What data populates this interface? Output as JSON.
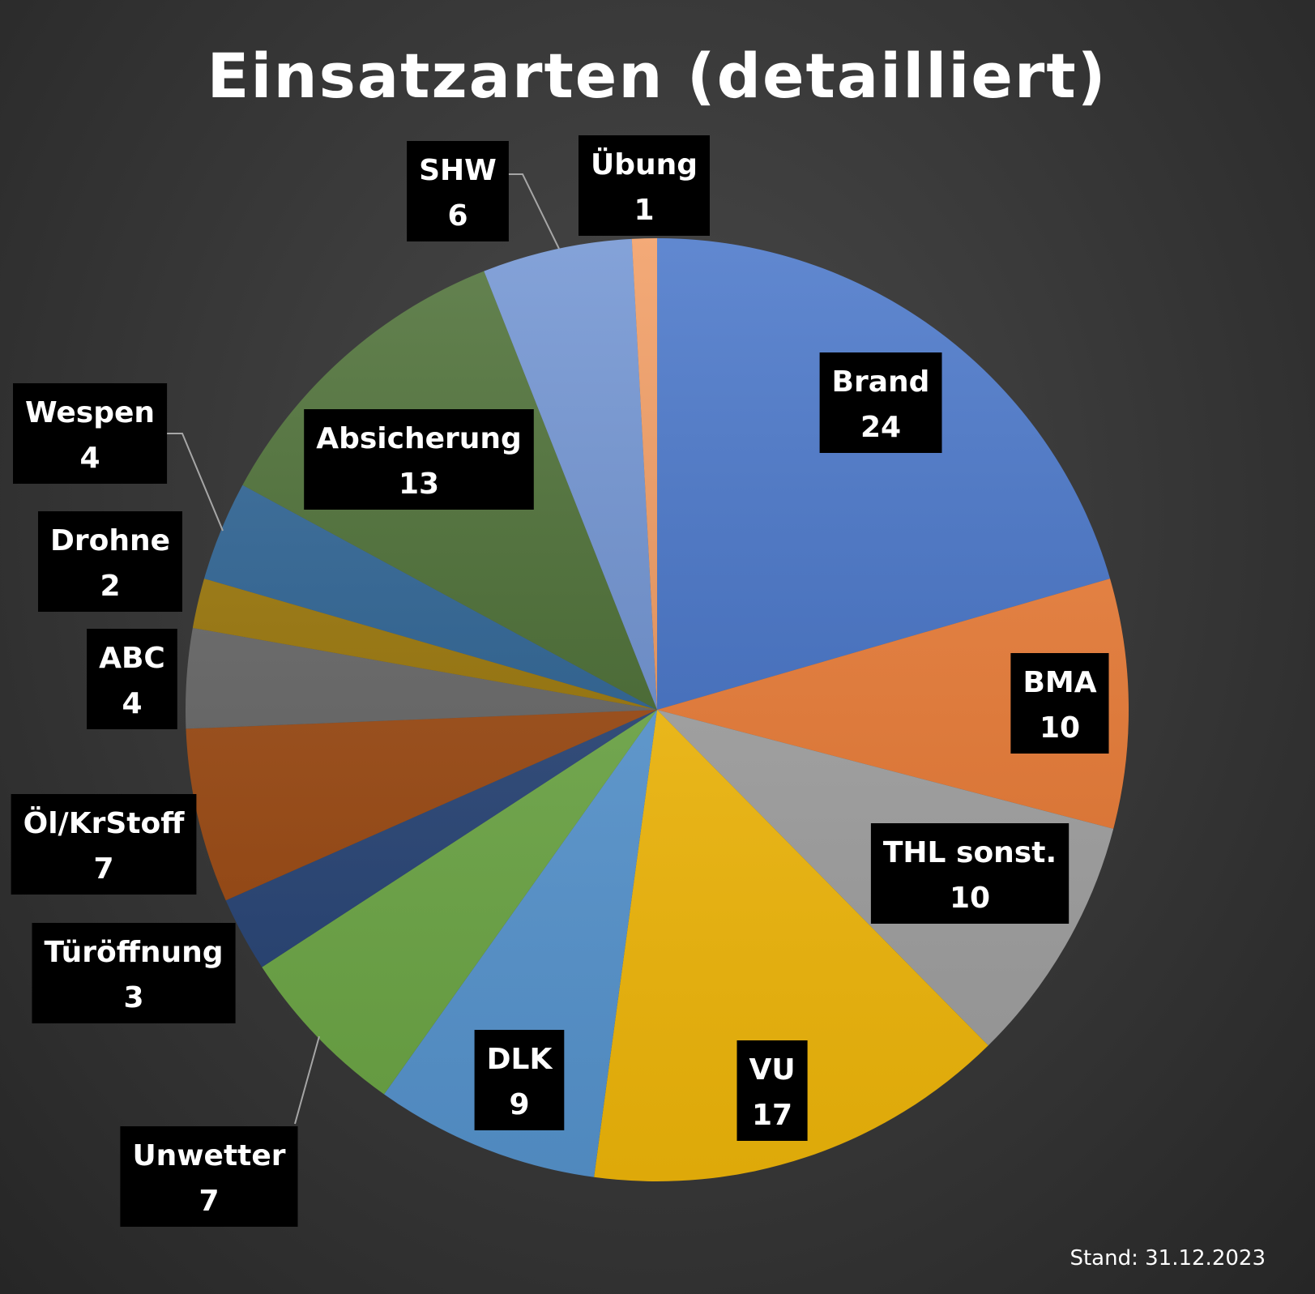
{
  "chart_data": {
    "type": "pie",
    "title": "Einsatzarten (detailliert)",
    "categories": [
      "Brand",
      "BMA",
      "THL sonst.",
      "VU",
      "DLK",
      "Unwetter",
      "Türöffnung",
      "Öl/KrStoff",
      "ABC",
      "Drohne",
      "Wespen",
      "Absicherung",
      "SHW",
      "Übung"
    ],
    "values": [
      24,
      10,
      10,
      17,
      9,
      7,
      3,
      7,
      4,
      2,
      4,
      13,
      6,
      1
    ],
    "colors": [
      "#3e6ec6",
      "#ee7a31",
      "#a5a5a5",
      "#fcc00a",
      "#5a9bd8",
      "#70ad47",
      "#264478",
      "#9e480e",
      "#636363",
      "#997300",
      "#255e91",
      "#43682b",
      "#698ed0",
      "#f1975a"
    ],
    "start_angle_deg": 0,
    "direction": "clockwise",
    "legend": "none",
    "data_labels": "category and value"
  },
  "footnote": "Stand: 31.12.2023"
}
